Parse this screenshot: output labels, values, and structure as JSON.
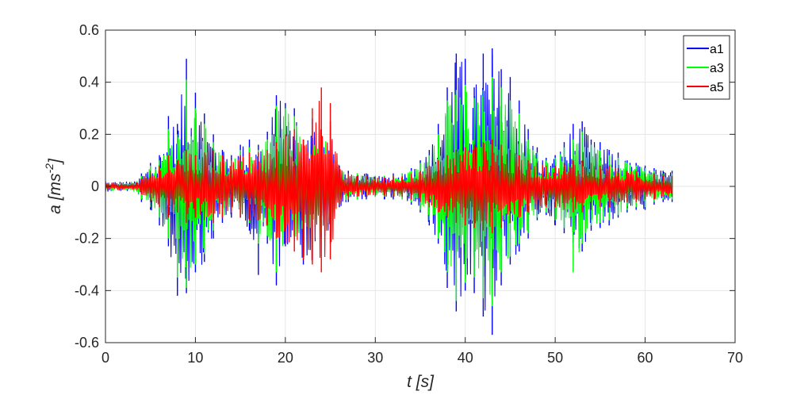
{
  "chart_data": {
    "type": "line",
    "xlabel": "t [s]",
    "ylabel_main": "a [ms",
    "ylabel_sup": "-2",
    "ylabel_close": "]",
    "xlim": [
      0,
      70
    ],
    "ylim": [
      -0.6,
      0.6
    ],
    "xticks": [
      "0",
      "10",
      "20",
      "30",
      "40",
      "50",
      "60",
      "70"
    ],
    "yticks": [
      "0.6",
      "0.4",
      "0.2",
      "0",
      "-0.2",
      "-0.4",
      "-0.6"
    ],
    "grid": true,
    "legend_position": "top-right",
    "colors": {
      "a1": "#0000ff",
      "a3": "#00ff00",
      "a5": "#ff0000"
    },
    "series": [
      {
        "name": "a1",
        "x": [
          0,
          3.5,
          4,
          5,
          6,
          7,
          8,
          9,
          10,
          11,
          12,
          13,
          14,
          15,
          16,
          17,
          18,
          19,
          20,
          21,
          22,
          23,
          24,
          25,
          26,
          27,
          28,
          29,
          30,
          31,
          32,
          33,
          34,
          35,
          36,
          37,
          38,
          39,
          40,
          41,
          42,
          43,
          44,
          45,
          46,
          47,
          48,
          49,
          50,
          51,
          52,
          53,
          54,
          55,
          56,
          57,
          58,
          59,
          60,
          61,
          62,
          63
        ],
        "pos": [
          0.02,
          0.02,
          0.05,
          0.09,
          0.12,
          0.27,
          0.24,
          0.49,
          0.36,
          0.28,
          0.2,
          0.14,
          0.12,
          0.16,
          0.18,
          0.16,
          0.21,
          0.35,
          0.32,
          0.3,
          0.18,
          0.26,
          0.22,
          0.25,
          0.08,
          0.06,
          0.05,
          0.05,
          0.04,
          0.04,
          0.05,
          0.05,
          0.07,
          0.1,
          0.14,
          0.24,
          0.38,
          0.51,
          0.49,
          0.38,
          0.51,
          0.53,
          0.45,
          0.42,
          0.33,
          0.22,
          0.15,
          0.11,
          0.12,
          0.17,
          0.24,
          0.25,
          0.18,
          0.17,
          0.14,
          0.13,
          0.1,
          0.09,
          0.08,
          0.07,
          0.06,
          0.06
        ],
        "neg": [
          -0.02,
          -0.02,
          -0.06,
          -0.09,
          -0.15,
          -0.23,
          -0.42,
          -0.41,
          -0.33,
          -0.29,
          -0.2,
          -0.14,
          -0.12,
          -0.12,
          -0.17,
          -0.34,
          -0.22,
          -0.38,
          -0.23,
          -0.21,
          -0.3,
          -0.28,
          -0.2,
          -0.22,
          -0.08,
          -0.06,
          -0.05,
          -0.05,
          -0.04,
          -0.05,
          -0.05,
          -0.05,
          -0.07,
          -0.1,
          -0.15,
          -0.22,
          -0.39,
          -0.48,
          -0.4,
          -0.41,
          -0.5,
          -0.57,
          -0.38,
          -0.3,
          -0.25,
          -0.2,
          -0.13,
          -0.11,
          -0.15,
          -0.18,
          -0.22,
          -0.25,
          -0.17,
          -0.16,
          -0.15,
          -0.12,
          -0.1,
          -0.09,
          -0.09,
          -0.07,
          -0.06,
          -0.06
        ]
      },
      {
        "name": "a3",
        "x": [
          0,
          3.5,
          4,
          5,
          6,
          7,
          8,
          9,
          10,
          11,
          12,
          13,
          14,
          15,
          16,
          17,
          18,
          19,
          20,
          21,
          22,
          23,
          24,
          25,
          26,
          27,
          28,
          29,
          30,
          31,
          32,
          33,
          34,
          35,
          36,
          37,
          38,
          39,
          40,
          41,
          42,
          43,
          44,
          45,
          46,
          47,
          48,
          49,
          50,
          51,
          52,
          53,
          54,
          55,
          56,
          57,
          58,
          59,
          60,
          61,
          62,
          63
        ],
        "pos": [
          0.02,
          0.02,
          0.04,
          0.08,
          0.1,
          0.22,
          0.2,
          0.41,
          0.3,
          0.24,
          0.17,
          0.12,
          0.1,
          0.14,
          0.15,
          0.14,
          0.18,
          0.31,
          0.3,
          0.27,
          0.16,
          0.22,
          0.2,
          0.22,
          0.07,
          0.05,
          0.05,
          0.04,
          0.04,
          0.04,
          0.04,
          0.05,
          0.06,
          0.09,
          0.12,
          0.2,
          0.33,
          0.37,
          0.39,
          0.34,
          0.37,
          0.42,
          0.38,
          0.33,
          0.28,
          0.18,
          0.13,
          0.1,
          0.11,
          0.15,
          0.18,
          0.21,
          0.16,
          0.14,
          0.12,
          0.11,
          0.09,
          0.08,
          0.07,
          0.06,
          0.05,
          0.05
        ],
        "neg": [
          -0.02,
          -0.02,
          -0.05,
          -0.08,
          -0.12,
          -0.2,
          -0.35,
          -0.39,
          -0.3,
          -0.26,
          -0.17,
          -0.12,
          -0.1,
          -0.11,
          -0.14,
          -0.22,
          -0.19,
          -0.33,
          -0.21,
          -0.19,
          -0.25,
          -0.24,
          -0.18,
          -0.19,
          -0.07,
          -0.05,
          -0.05,
          -0.04,
          -0.04,
          -0.04,
          -0.04,
          -0.05,
          -0.06,
          -0.09,
          -0.13,
          -0.2,
          -0.33,
          -0.44,
          -0.37,
          -0.35,
          -0.43,
          -0.46,
          -0.33,
          -0.27,
          -0.22,
          -0.18,
          -0.12,
          -0.1,
          -0.13,
          -0.16,
          -0.33,
          -0.22,
          -0.15,
          -0.14,
          -0.13,
          -0.11,
          -0.09,
          -0.08,
          -0.08,
          -0.06,
          -0.05,
          -0.05
        ]
      },
      {
        "name": "a5",
        "x": [
          0,
          3.5,
          4,
          5,
          6,
          7,
          8,
          9,
          10,
          11,
          12,
          13,
          14,
          15,
          16,
          17,
          18,
          19,
          20,
          21,
          22,
          23,
          24,
          25,
          26,
          27,
          28,
          29,
          30,
          31,
          32,
          33,
          34,
          35,
          36,
          37,
          38,
          39,
          40,
          41,
          42,
          43,
          44,
          45,
          46,
          47,
          48,
          49,
          50,
          51,
          52,
          53,
          54,
          55,
          56,
          57,
          58,
          59,
          60,
          61,
          62,
          63
        ],
        "pos": [
          0.015,
          0.015,
          0.03,
          0.06,
          0.08,
          0.12,
          0.1,
          0.14,
          0.12,
          0.13,
          0.14,
          0.12,
          0.1,
          0.12,
          0.13,
          0.13,
          0.14,
          0.17,
          0.2,
          0.22,
          0.18,
          0.3,
          0.38,
          0.32,
          0.07,
          0.05,
          0.04,
          0.04,
          0.035,
          0.035,
          0.04,
          0.04,
          0.05,
          0.06,
          0.08,
          0.1,
          0.12,
          0.14,
          0.15,
          0.16,
          0.17,
          0.18,
          0.16,
          0.14,
          0.12,
          0.1,
          0.09,
          0.08,
          0.08,
          0.09,
          0.1,
          0.1,
          0.09,
          0.08,
          0.08,
          0.07,
          0.06,
          0.06,
          0.05,
          0.05,
          0.04,
          0.04
        ],
        "neg": [
          -0.015,
          -0.015,
          -0.03,
          -0.06,
          -0.08,
          -0.12,
          -0.1,
          -0.14,
          -0.12,
          -0.13,
          -0.14,
          -0.12,
          -0.1,
          -0.12,
          -0.13,
          -0.13,
          -0.15,
          -0.2,
          -0.22,
          -0.25,
          -0.28,
          -0.3,
          -0.33,
          -0.28,
          -0.07,
          -0.05,
          -0.04,
          -0.04,
          -0.035,
          -0.035,
          -0.04,
          -0.04,
          -0.05,
          -0.06,
          -0.08,
          -0.1,
          -0.12,
          -0.14,
          -0.15,
          -0.16,
          -0.17,
          -0.18,
          -0.16,
          -0.14,
          -0.12,
          -0.1,
          -0.09,
          -0.08,
          -0.08,
          -0.09,
          -0.1,
          -0.1,
          -0.09,
          -0.08,
          -0.08,
          -0.07,
          -0.06,
          -0.06,
          -0.05,
          -0.05,
          -0.04,
          -0.04
        ]
      }
    ]
  }
}
